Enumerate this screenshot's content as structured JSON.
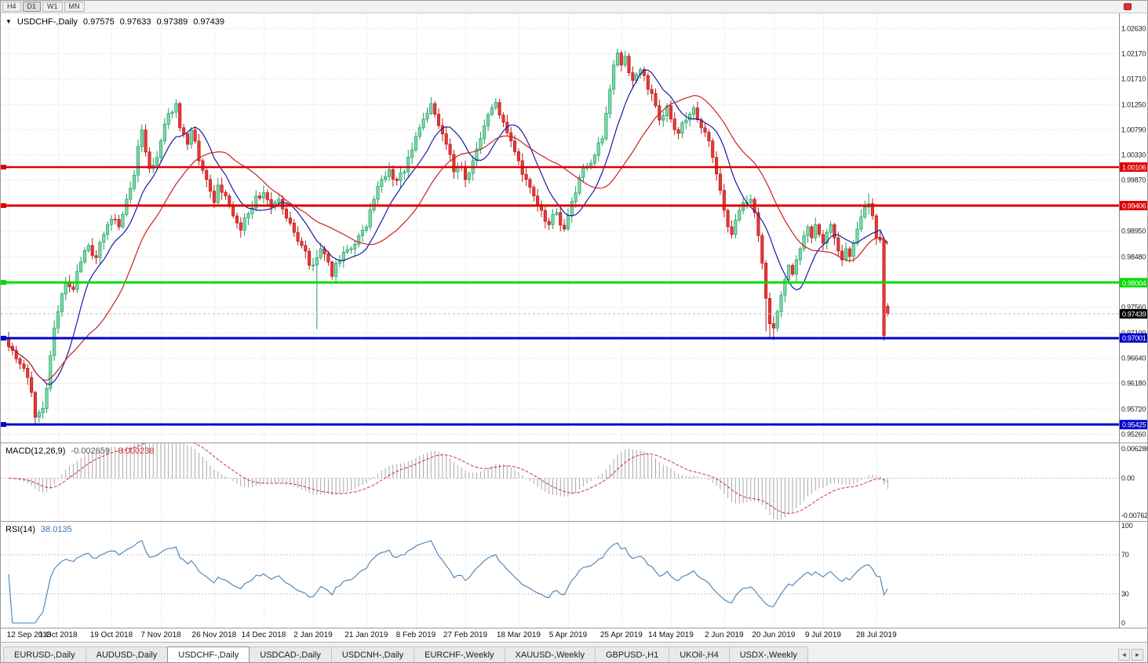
{
  "toolbar": {
    "timeframes": [
      {
        "label": "H4",
        "active": false
      },
      {
        "label": "D1",
        "active": true
      },
      {
        "label": "W1",
        "active": false
      },
      {
        "label": "MN",
        "active": false
      }
    ]
  },
  "price_panel": {
    "title_arrow": "▼",
    "symbol": "USDCHF-,Daily",
    "open": "0.97575",
    "high": "0.97633",
    "low": "0.97389",
    "close": "0.97439"
  },
  "macd_panel": {
    "label": "MACD(12,26,9)",
    "value_main": "-0.002659",
    "value_signal": "-0.000238",
    "axis_labels": [
      "0.006286",
      "0.00",
      "-0.00762"
    ]
  },
  "rsi_panel": {
    "label": "RSI(14)",
    "value": "38.0135",
    "axis_labels": [
      "100",
      "70",
      "30",
      "0"
    ]
  },
  "tabs": {
    "items": [
      {
        "label": "EURUSD-,Daily",
        "active": false
      },
      {
        "label": "AUDUSD-,Daily",
        "active": false
      },
      {
        "label": "USDCHF-,Daily",
        "active": true
      },
      {
        "label": "USDCAD-,Daily",
        "active": false
      },
      {
        "label": "USDCNH-,Daily",
        "active": false
      },
      {
        "label": "EURCHF-,Weekly",
        "active": false
      },
      {
        "label": "XAUUSD-,Weekly",
        "active": false
      },
      {
        "label": "GBPUSD-,H1",
        "active": false
      },
      {
        "label": "UKOil-,H4",
        "active": false
      },
      {
        "label": "USDX-,Weekly",
        "active": false
      }
    ],
    "scroll_left": "◄",
    "scroll_right": "►"
  },
  "chart_data": {
    "type": "candlestick",
    "symbol": "USDCHF",
    "timeframe": "Daily",
    "last_quote": {
      "open": 0.97575,
      "high": 0.97633,
      "low": 0.97389,
      "close": 0.97439
    },
    "current_price": 0.97439,
    "price_axis": {
      "range": [
        0.951,
        1.029
      ],
      "ticks": [
        "1.02630",
        "1.02170",
        "1.01710",
        "1.01250",
        "1.00790",
        "1.00330",
        "0.99870",
        "0.98950",
        "0.98480",
        "0.97560",
        "0.97100",
        "0.96640",
        "0.96180",
        "0.95720",
        "0.95260"
      ]
    },
    "hlines": [
      {
        "label": "1.00106",
        "value": 1.00106,
        "color": "#dd0000",
        "width": 2.5
      },
      {
        "label": "0.99406",
        "value": 0.99406,
        "color": "#dd0000",
        "width": 3
      },
      {
        "label": "0.98004",
        "value": 0.98004,
        "color": "#00dd00",
        "width": 3
      },
      {
        "label": "0.97001",
        "value": 0.97001,
        "color": "#0000cc",
        "width": 3
      },
      {
        "label": "0.95425",
        "value": 0.95425,
        "color": "#0000cc",
        "width": 3
      }
    ],
    "time_labels": [
      {
        "bar": 0,
        "text": "12 Sep 2018"
      },
      {
        "bar": 13,
        "text": "1 Oct 2018"
      },
      {
        "bar": 27,
        "text": "19 Oct 2018"
      },
      {
        "bar": 40,
        "text": "7 Nov 2018"
      },
      {
        "bar": 54,
        "text": "26 Nov 2018"
      },
      {
        "bar": 67,
        "text": "14 Dec 2018"
      },
      {
        "bar": 80,
        "text": "2 Jan 2019"
      },
      {
        "bar": 94,
        "text": "21 Jan 2019"
      },
      {
        "bar": 107,
        "text": "8 Feb 2019"
      },
      {
        "bar": 120,
        "text": "27 Feb 2019"
      },
      {
        "bar": 134,
        "text": "18 Mar 2019"
      },
      {
        "bar": 147,
        "text": "5 Apr 2019"
      },
      {
        "bar": 161,
        "text": "25 Apr 2019"
      },
      {
        "bar": 174,
        "text": "14 May 2019"
      },
      {
        "bar": 188,
        "text": "2 Jun 2019"
      },
      {
        "bar": 201,
        "text": "20 Jun 2019"
      },
      {
        "bar": 214,
        "text": "9 Jul 2019"
      },
      {
        "bar": 228,
        "text": "28 Jul 2019"
      }
    ],
    "bars_total": 232,
    "close_waypoints": [
      [
        0,
        0.9685
      ],
      [
        2,
        0.9662
      ],
      [
        4,
        0.9645
      ],
      [
        6,
        0.9601
      ],
      [
        7,
        0.9556
      ],
      [
        9,
        0.9572
      ],
      [
        10,
        0.9608
      ],
      [
        11,
        0.9668
      ],
      [
        12,
        0.9718
      ],
      [
        13,
        0.9748
      ],
      [
        15,
        0.98
      ],
      [
        17,
        0.9788
      ],
      [
        19,
        0.9838
      ],
      [
        21,
        0.9868
      ],
      [
        23,
        0.9846
      ],
      [
        25,
        0.9888
      ],
      [
        27,
        0.9916
      ],
      [
        29,
        0.9902
      ],
      [
        31,
        0.9952
      ],
      [
        33,
        0.9996
      ],
      [
        34,
        1.0048
      ],
      [
        35,
        1.0078
      ],
      [
        36,
        1.0038
      ],
      [
        37,
        1.0008
      ],
      [
        39,
        1.0028
      ],
      [
        40,
        1.0058
      ],
      [
        42,
        1.0108
      ],
      [
        44,
        1.0126
      ],
      [
        45,
        1.0082
      ],
      [
        47,
        1.0052
      ],
      [
        48,
        1.0078
      ],
      [
        50,
        1.0022
      ],
      [
        52,
        0.9988
      ],
      [
        54,
        0.9946
      ],
      [
        55,
        0.9978
      ],
      [
        57,
        0.9958
      ],
      [
        59,
        0.9922
      ],
      [
        61,
        0.9896
      ],
      [
        63,
        0.9926
      ],
      [
        65,
        0.9958
      ],
      [
        67,
        0.9964
      ],
      [
        69,
        0.9938
      ],
      [
        71,
        0.9952
      ],
      [
        73,
        0.9918
      ],
      [
        75,
        0.9892
      ],
      [
        77,
        0.9868
      ],
      [
        79,
        0.9832
      ],
      [
        81,
        0.9846
      ],
      [
        82,
        0.9862
      ],
      [
        84,
        0.9838
      ],
      [
        85,
        0.9812
      ],
      [
        86,
        0.9836
      ],
      [
        88,
        0.9856
      ],
      [
        90,
        0.9862
      ],
      [
        92,
        0.9886
      ],
      [
        94,
        0.9902
      ],
      [
        96,
        0.9952
      ],
      [
        98,
        0.9988
      ],
      [
        100,
        1.0006
      ],
      [
        102,
        0.9986
      ],
      [
        104,
        1.0002
      ],
      [
        106,
        1.0042
      ],
      [
        108,
        1.0082
      ],
      [
        110,
        1.0108
      ],
      [
        111,
        1.0126
      ],
      [
        113,
        1.0086
      ],
      [
        115,
        1.0052
      ],
      [
        117,
        1.0002
      ],
      [
        119,
        1.0012
      ],
      [
        120,
        0.9988
      ],
      [
        122,
        1.0022
      ],
      [
        124,
        1.0062
      ],
      [
        126,
        1.0106
      ],
      [
        128,
        1.0128
      ],
      [
        130,
        1.0092
      ],
      [
        132,
        1.0058
      ],
      [
        134,
        1.0022
      ],
      [
        136,
        0.9988
      ],
      [
        138,
        0.9958
      ],
      [
        140,
        0.9932
      ],
      [
        142,
        0.9906
      ],
      [
        144,
        0.9928
      ],
      [
        145,
        0.9905
      ],
      [
        146,
        0.9898
      ],
      [
        148,
        0.9948
      ],
      [
        150,
        0.9992
      ],
      [
        152,
        1.0012
      ],
      [
        154,
        1.0032
      ],
      [
        156,
        1.0062
      ],
      [
        157,
        1.0108
      ],
      [
        158,
        1.0152
      ],
      [
        159,
        1.0196
      ],
      [
        160,
        1.0218
      ],
      [
        161,
        1.0196
      ],
      [
        162,
        1.0212
      ],
      [
        163,
        1.0182
      ],
      [
        164,
        1.0168
      ],
      [
        166,
        1.0188
      ],
      [
        168,
        1.0152
      ],
      [
        170,
        1.0122
      ],
      [
        171,
        1.0096
      ],
      [
        173,
        1.0122
      ],
      [
        174,
        1.0098
      ],
      [
        176,
        1.0072
      ],
      [
        178,
        1.0096
      ],
      [
        180,
        1.0118
      ],
      [
        182,
        1.0082
      ],
      [
        184,
        1.0058
      ],
      [
        185,
        1.0028
      ],
      [
        186,
        0.9998
      ],
      [
        187,
        0.9968
      ],
      [
        188,
        0.9932
      ],
      [
        189,
        0.9902
      ],
      [
        190,
        0.9888
      ],
      [
        192,
        0.9932
      ],
      [
        194,
        0.9946
      ],
      [
        195,
        0.9952
      ],
      [
        196,
        0.9928
      ],
      [
        197,
        0.9886
      ],
      [
        198,
        0.9836
      ],
      [
        199,
        0.9772
      ],
      [
        200,
        0.9726
      ],
      [
        201,
        0.9718
      ],
      [
        202,
        0.9748
      ],
      [
        203,
        0.9778
      ],
      [
        204,
        0.9806
      ],
      [
        205,
        0.9832
      ],
      [
        206,
        0.9816
      ],
      [
        207,
        0.9842
      ],
      [
        208,
        0.9862
      ],
      [
        209,
        0.9886
      ],
      [
        210,
        0.9902
      ],
      [
        211,
        0.9882
      ],
      [
        212,
        0.9906
      ],
      [
        213,
        0.9888
      ],
      [
        214,
        0.9872
      ],
      [
        215,
        0.9892
      ],
      [
        216,
        0.9906
      ],
      [
        217,
        0.9882
      ],
      [
        218,
        0.9858
      ],
      [
        219,
        0.9842
      ],
      [
        220,
        0.9862
      ],
      [
        221,
        0.9848
      ],
      [
        222,
        0.9872
      ],
      [
        223,
        0.9898
      ],
      [
        224,
        0.992
      ],
      [
        225,
        0.9938
      ],
      [
        226,
        0.9944
      ],
      [
        227,
        0.9922
      ],
      [
        228,
        0.9882
      ],
      [
        229,
        0.9878
      ],
      [
        230,
        0.9704
      ],
      [
        231,
        0.97439
      ]
    ],
    "wick_overrides": [
      {
        "bar": 7,
        "low": 0.9543
      },
      {
        "bar": 44,
        "high": 1.0131
      },
      {
        "bar": 81,
        "low": 0.9716
      },
      {
        "bar": 111,
        "high": 1.0136
      },
      {
        "bar": 128,
        "high": 1.0136
      },
      {
        "bar": 160,
        "high": 1.0226
      },
      {
        "bar": 162,
        "high": 1.0222
      },
      {
        "bar": 199,
        "low": 0.9712
      },
      {
        "bar": 200,
        "low": 0.9698
      },
      {
        "bar": 201,
        "low": 0.9696
      },
      {
        "bar": 226,
        "high": 0.9963
      },
      {
        "bar": 230,
        "low": 0.9695
      }
    ],
    "overlays": [
      {
        "type": "sma",
        "period": 10,
        "color": "#1a1aa6"
      },
      {
        "type": "sma",
        "period": 24,
        "color": "#cc2020"
      }
    ],
    "indicators": {
      "macd": {
        "fast": 12,
        "slow": 26,
        "signal": 9,
        "scale_max": 0.006286,
        "scale_min": -0.00762
      },
      "rsi": {
        "period": 14,
        "levels": [
          70,
          30
        ],
        "scale": [
          0,
          100
        ]
      }
    },
    "colors": {
      "up_fill": "#7cd9a9",
      "up_stroke": "#1f9e63",
      "down_fill": "#e53935",
      "down_stroke": "#b71c1c",
      "macd_hist": "#a8a8a8",
      "macd_signal": "#cc3333",
      "rsi_line": "#4a7fb5",
      "current_badge": "#000000"
    }
  }
}
